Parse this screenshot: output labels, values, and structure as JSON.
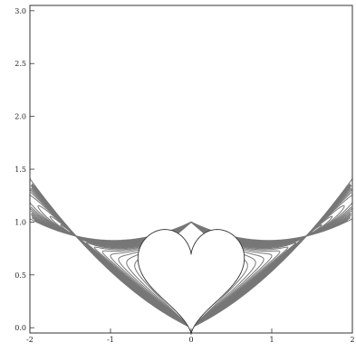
{
  "chart_data": {
    "type": "line",
    "title": "",
    "xlabel": "",
    "ylabel": "",
    "xlim": [
      -2,
      2
    ],
    "ylim": [
      -0.05,
      3.05
    ],
    "x_ticks": [
      {
        "value": -2,
        "label": "-2"
      },
      {
        "value": -1,
        "label": "-1"
      },
      {
        "value": 0,
        "label": "0"
      },
      {
        "value": 1,
        "label": "1"
      },
      {
        "value": 2,
        "label": "2"
      }
    ],
    "y_ticks": [
      {
        "value": 0.0,
        "label": "0.0"
      },
      {
        "value": 0.5,
        "label": "0.5"
      },
      {
        "value": 1.0,
        "label": "1.0"
      },
      {
        "value": 1.5,
        "label": "1.5"
      },
      {
        "value": 2.0,
        "label": "2.0"
      },
      {
        "value": 2.5,
        "label": "2.5"
      },
      {
        "value": 3.0,
        "label": "3.0"
      }
    ],
    "grid": false,
    "legend": "none",
    "line_color": "#777777",
    "frame_color": "#333333",
    "series": [
      {
        "a": 0.7
      },
      {
        "a": 0.8
      },
      {
        "a": 0.9
      },
      {
        "a": 1.0
      },
      {
        "a": 1.1
      },
      {
        "a": 1.2
      },
      {
        "a": 1.3
      },
      {
        "a": 1.4
      },
      {
        "a": 1.5
      },
      {
        "a": 1.62
      },
      {
        "a": 1.75
      },
      {
        "a": 1.9
      },
      {
        "a": 2.07
      },
      {
        "a": 2.27
      },
      {
        "a": 2.5
      },
      {
        "a": 2.8
      },
      {
        "a": 3.2
      },
      {
        "a": 3.75
      },
      {
        "a": 4.5
      },
      {
        "a": 5.6
      },
      {
        "a": 7.5
      },
      {
        "a": 11.0
      },
      {
        "a": 20.0
      }
    ]
  }
}
